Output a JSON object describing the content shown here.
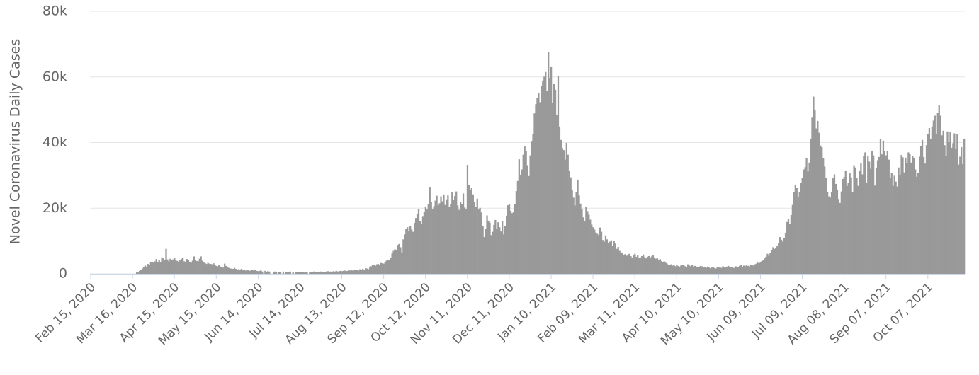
{
  "chart_data": {
    "type": "bar",
    "ylabel": "Novel Coronavirus Daily Cases",
    "color": "#999999",
    "grid": true,
    "ylim": [
      0,
      80000
    ],
    "yticks": [
      0,
      {
        "value": 20000,
        "label": "20k"
      },
      {
        "value": 40000,
        "label": "40k"
      },
      {
        "value": 60000,
        "label": "60k"
      },
      {
        "value": 80000,
        "label": "80k"
      }
    ],
    "categories": [
      "Feb 15, 2020",
      null,
      null,
      null,
      null,
      null,
      null,
      null,
      null,
      null,
      null,
      null,
      null,
      null,
      null,
      null,
      null,
      null,
      null,
      null,
      null,
      null,
      null,
      null,
      null,
      null,
      null,
      null,
      null,
      null,
      "Mar 16, 2020",
      null,
      null,
      null,
      null,
      null,
      null,
      null,
      null,
      null,
      null,
      null,
      null,
      null,
      null,
      null,
      null,
      null,
      null,
      null,
      null,
      null,
      null,
      null,
      null,
      null,
      null,
      null,
      null,
      null,
      "Apr 15, 2020",
      null,
      null,
      null,
      null,
      null,
      null,
      null,
      null,
      null,
      null,
      null,
      null,
      null,
      null,
      null,
      null,
      null,
      null,
      null,
      null,
      null,
      null,
      null,
      null,
      null,
      null,
      null,
      null,
      null,
      "May 15, 2020",
      null,
      null,
      null,
      null,
      null,
      null,
      null,
      null,
      null,
      null,
      null,
      null,
      null,
      null,
      null,
      null,
      null,
      null,
      null,
      null,
      null,
      null,
      null,
      null,
      null,
      null,
      null,
      null,
      null,
      "Jun 14, 2020",
      null,
      null,
      null,
      null,
      null,
      null,
      null,
      null,
      null,
      null,
      null,
      null,
      null,
      null,
      null,
      null,
      null,
      null,
      null,
      null,
      null,
      null,
      null,
      null,
      null,
      null,
      null,
      null,
      null,
      "Jul 14, 2020",
      null,
      null,
      null,
      null,
      null,
      null,
      null,
      null,
      null,
      null,
      null,
      null,
      null,
      null,
      null,
      null,
      null,
      null,
      null,
      null,
      null,
      null,
      null,
      null,
      null,
      null,
      null,
      null,
      null,
      "Aug 13, 2020",
      null,
      null,
      null,
      null,
      null,
      null,
      null,
      null,
      null,
      null,
      null,
      null,
      null,
      null,
      null,
      null,
      null,
      null,
      null,
      null,
      null,
      null,
      null,
      null,
      null,
      null,
      null,
      null,
      null,
      "Sep 12, 2020",
      null,
      null,
      null,
      null,
      null,
      null,
      null,
      null,
      null,
      null,
      null,
      null,
      null,
      null,
      null,
      null,
      null,
      null,
      null,
      null,
      null,
      null,
      null,
      null,
      null,
      null,
      null,
      null,
      null,
      "Oct 12, 2020",
      null,
      null,
      null,
      null,
      null,
      null,
      null,
      null,
      null,
      null,
      null,
      null,
      null,
      null,
      null,
      null,
      null,
      null,
      null,
      null,
      null,
      null,
      null,
      null,
      null,
      null,
      null,
      null,
      null,
      "Nov 11, 2020",
      null,
      null,
      null,
      null,
      null,
      null,
      null,
      null,
      null,
      null,
      null,
      null,
      null,
      null,
      null,
      null,
      null,
      null,
      null,
      null,
      null,
      null,
      null,
      null,
      null,
      null,
      null,
      null,
      null,
      "Dec 11, 2020",
      null,
      null,
      null,
      null,
      null,
      null,
      null,
      null,
      null,
      null,
      null,
      null,
      null,
      null,
      null,
      null,
      null,
      null,
      null,
      null,
      null,
      null,
      null,
      null,
      null,
      null,
      null,
      null,
      null,
      "Jan 10, 2021",
      null,
      null,
      null,
      null,
      null,
      null,
      null,
      null,
      null,
      null,
      null,
      null,
      null,
      null,
      null,
      null,
      null,
      null,
      null,
      null,
      null,
      null,
      null,
      null,
      null,
      null,
      null,
      null,
      null,
      "Feb 09, 2021",
      null,
      null,
      null,
      null,
      null,
      null,
      null,
      null,
      null,
      null,
      null,
      null,
      null,
      null,
      null,
      null,
      null,
      null,
      null,
      null,
      null,
      null,
      null,
      null,
      null,
      null,
      null,
      null,
      null,
      "Mar 11, 2021",
      null,
      null,
      null,
      null,
      null,
      null,
      null,
      null,
      null,
      null,
      null,
      null,
      null,
      null,
      null,
      null,
      null,
      null,
      null,
      null,
      null,
      null,
      null,
      null,
      null,
      null,
      null,
      null,
      null,
      "Apr 10, 2021",
      null,
      null,
      null,
      null,
      null,
      null,
      null,
      null,
      null,
      null,
      null,
      null,
      null,
      null,
      null,
      null,
      null,
      null,
      null,
      null,
      null,
      null,
      null,
      null,
      null,
      null,
      null,
      null,
      null,
      "May 10, 2021",
      null,
      null,
      null,
      null,
      null,
      null,
      null,
      null,
      null,
      null,
      null,
      null,
      null,
      null,
      null,
      null,
      null,
      null,
      null,
      null,
      null,
      null,
      null,
      null,
      null,
      null,
      null,
      null,
      null,
      "Jun 09, 2021",
      null,
      null,
      null,
      null,
      null,
      null,
      null,
      null,
      null,
      null,
      null,
      null,
      null,
      null,
      null,
      null,
      null,
      null,
      null,
      null,
      null,
      null,
      null,
      null,
      null,
      null,
      null,
      null,
      null,
      "Jul 09, 2021",
      null,
      null,
      null,
      null,
      null,
      null,
      null,
      null,
      null,
      null,
      null,
      null,
      null,
      null,
      null,
      null,
      null,
      null,
      null,
      null,
      null,
      null,
      null,
      null,
      null,
      null,
      null,
      null,
      null,
      "Aug 08, 2021",
      null,
      null,
      null,
      null,
      null,
      null,
      null,
      null,
      null,
      null,
      null,
      null,
      null,
      null,
      null,
      null,
      null,
      null,
      null,
      null,
      null,
      null,
      null,
      null,
      null,
      null,
      null,
      null,
      null,
      "Sep 07, 2021",
      null,
      null,
      null,
      null,
      null,
      null,
      null,
      null,
      null,
      null,
      null,
      null,
      null,
      null,
      null,
      null,
      null,
      null,
      null,
      null,
      null,
      null,
      null,
      null,
      null,
      null,
      null,
      null,
      null,
      "Oct 07, 2021",
      null,
      null,
      null,
      null,
      null,
      null,
      null,
      null,
      null,
      null,
      null,
      null,
      null,
      null,
      null,
      null,
      null,
      null,
      null,
      null,
      null,
      null,
      null,
      null,
      null,
      null
    ],
    "values": [
      0,
      0,
      0,
      0,
      0,
      0,
      0,
      0,
      0,
      0,
      0,
      0,
      0,
      0,
      0,
      0,
      0,
      0,
      0,
      0,
      0,
      0,
      0,
      0,
      0,
      0,
      0,
      0,
      0,
      0,
      0,
      0,
      0,
      600,
      400,
      900,
      1300,
      1600,
      2000,
      2500,
      2200,
      3000,
      2600,
      3600,
      3700,
      3400,
      3800,
      4500,
      3500,
      4200,
      3600,
      5000,
      4700,
      4200,
      7600,
      4400,
      3800,
      4600,
      4200,
      4400,
      4800,
      4300,
      3900,
      3600,
      4100,
      4600,
      4800,
      3800,
      3700,
      4500,
      4100,
      3600,
      3400,
      4000,
      5300,
      4200,
      3900,
      3800,
      4600,
      5300,
      4000,
      3600,
      3200,
      3000,
      3300,
      3100,
      3000,
      2900,
      3200,
      2600,
      2400,
      2300,
      2700,
      2200,
      2000,
      1900,
      3100,
      2400,
      2000,
      1800,
      1600,
      1600,
      1500,
      1800,
      1500,
      1300,
      1400,
      1300,
      1500,
      1200,
      1300,
      1000,
      1100,
      1200,
      900,
      1100,
      1200,
      1000,
      1300,
      900,
      800,
      900,
      1000,
      700,
      0,
      900,
      600,
      800,
      700,
      0,
      0,
      600,
      700,
      500,
      0,
      600,
      500,
      0,
      700,
      0,
      600,
      500,
      600,
      700,
      0,
      500,
      0,
      500,
      600,
      500,
      500,
      600,
      500,
      400,
      600,
      500,
      0,
      500,
      600,
      500,
      700,
      500,
      600,
      500,
      600,
      700,
      600,
      500,
      600,
      700,
      800,
      600,
      700,
      600,
      800,
      700,
      900,
      700,
      800,
      900,
      800,
      900,
      1000,
      800,
      900,
      1100,
      1000,
      1200,
      900,
      1100,
      1300,
      1200,
      1000,
      1400,
      1300,
      1500,
      1200,
      1700,
      1600,
      1400,
      1900,
      2300,
      2600,
      2800,
      2400,
      2900,
      3000,
      2700,
      3300,
      3200,
      3100,
      3600,
      4000,
      4200,
      4100,
      4900,
      6200,
      7000,
      7500,
      7200,
      8800,
      9100,
      8100,
      6500,
      10500,
      12000,
      13800,
      14200,
      13000,
      14600,
      13500,
      12800,
      15500,
      17000,
      18200,
      19800,
      16000,
      15200,
      17600,
      18900,
      20500,
      19600,
      21200,
      26500,
      21800,
      19700,
      20600,
      22300,
      23800,
      20900,
      21500,
      23600,
      22100,
      24200,
      21000,
      22700,
      23900,
      20400,
      21300,
      24800,
      22600,
      23700,
      25100,
      20800,
      19500,
      22000,
      21300,
      24500,
      20200,
      19800,
      33200,
      27000,
      25600,
      26300,
      24200,
      21800,
      20500,
      22900,
      19600,
      20100,
      18700,
      14500,
      11200,
      13600,
      17800,
      16200,
      15600,
      11800,
      12800,
      14900,
      16400,
      13600,
      15700,
      14200,
      12900,
      16100,
      12000,
      14600,
      17700,
      20900,
      21100,
      19200,
      18500,
      18800,
      21300,
      25200,
      28300,
      34900,
      30200,
      31800,
      36300,
      38800,
      37500,
      33100,
      29800,
      36100,
      40500,
      42600,
      48900,
      51700,
      53600,
      55000,
      52300,
      57200,
      58900,
      60100,
      61500,
      55800,
      67500,
      59700,
      63200,
      52000,
      57800,
      56100,
      48400,
      60300,
      44900,
      40800,
      38300,
      37700,
      34800,
      39900,
      36300,
      31300,
      29400,
      25600,
      23200,
      20800,
      25000,
      28700,
      23900,
      21400,
      19800,
      17200,
      16000,
      20500,
      19100,
      18000,
      16500,
      15000,
      14200,
      13500,
      12600,
      12200,
      11800,
      14100,
      12800,
      10300,
      9800,
      11700,
      10500,
      9400,
      9800,
      10200,
      8600,
      9900,
      9200,
      7600,
      8200,
      7000,
      6500,
      6300,
      5700,
      6000,
      5500,
      5800,
      6100,
      5400,
      5000,
      5600,
      6100,
      5200,
      5600,
      4800,
      5000,
      5400,
      5900,
      5100,
      4700,
      5200,
      5400,
      4900,
      5300,
      5600,
      5000,
      4600,
      4800,
      4200,
      4500,
      3900,
      3600,
      3800,
      3400,
      3100,
      2800,
      2600,
      2900,
      2500,
      2700,
      2300,
      2600,
      2400,
      2200,
      2500,
      2800,
      2600,
      2300,
      2100,
      2900,
      2500,
      2300,
      2600,
      2200,
      2400,
      2100,
      2200,
      2000,
      2400,
      2300,
      1900,
      2100,
      1800,
      2200,
      2000,
      1700,
      1900,
      2100,
      1800,
      1600,
      2000,
      1900,
      2100,
      1800,
      2300,
      2000,
      1900,
      2200,
      2400,
      2000,
      2100,
      1900,
      1800,
      2300,
      2200,
      2000,
      2400,
      2600,
      2100,
      2500,
      2300,
      2700,
      2400,
      2200,
      2600,
      2800,
      2500,
      2900,
      3100,
      3400,
      3200,
      3600,
      3900,
      4300,
      4700,
      5200,
      6100,
      5500,
      6400,
      7300,
      8100,
      7600,
      7900,
      8600,
      9300,
      11200,
      10400,
      9800,
      10800,
      12400,
      15800,
      16600,
      15200,
      17900,
      21000,
      24800,
      27200,
      26300,
      23400,
      24900,
      27800,
      29300,
      31800,
      32500,
      35200,
      31200,
      33900,
      41200,
      47600,
      54000,
      49800,
      44300,
      46600,
      43000,
      39100,
      38600,
      35300,
      32700,
      29200,
      24800,
      23600,
      23200,
      24900,
      29100,
      30300,
      27400,
      25600,
      22800,
      21600,
      25100,
      28900,
      29500,
      31500,
      26800,
      27700,
      30600,
      29400,
      24800,
      33100,
      32400,
      29100,
      26800,
      31500,
      33800,
      30300,
      35900,
      37000,
      27600,
      35800,
      34200,
      32000,
      37300,
      36100,
      26900,
      32300,
      34600,
      35600,
      41100,
      36400,
      40600,
      37500,
      36100,
      37500,
      34800,
      29200,
      30800,
      26800,
      29900,
      28100,
      26600,
      32400,
      30000,
      36200,
      35500,
      30900,
      35400,
      33800,
      37000,
      36600,
      33900,
      35800,
      35400,
      31800,
      29600,
      30700,
      35700,
      38900,
      40800,
      35600,
      33600,
      39200,
      42600,
      44400,
      41200,
      44900,
      46700,
      48200,
      42500,
      49100,
      51500,
      48200,
      42200,
      43600,
      39200,
      35800,
      43400,
      40100,
      43200,
      38400,
      39800,
      42800,
      38100,
      42500,
      33300,
      35700,
      38600,
      33400,
      41200
    ]
  }
}
